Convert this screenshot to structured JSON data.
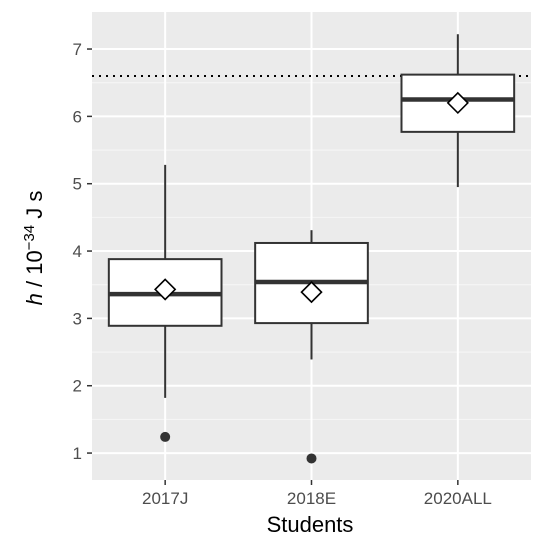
{
  "chart_data": {
    "type": "box",
    "xlabel": "Students",
    "ylabel": {
      "symbol": "h",
      "separator": " / 10",
      "exponent": "−34",
      "unit": " J s"
    },
    "ylim": [
      0.6,
      7.55
    ],
    "yticks": [
      1,
      2,
      3,
      4,
      5,
      6,
      7
    ],
    "grid": true,
    "reference_line": {
      "y": 6.6,
      "style": "dotted"
    },
    "categories": [
      "2017J",
      "2018E",
      "2020ALL"
    ],
    "boxes": [
      {
        "category": "2017J",
        "whisker_low": 1.82,
        "q1": 2.89,
        "median": 3.36,
        "q3": 3.88,
        "whisker_high": 5.28,
        "mean": 3.43,
        "outliers": [
          1.24
        ]
      },
      {
        "category": "2018E",
        "whisker_low": 2.39,
        "q1": 2.93,
        "median": 3.54,
        "q3": 4.12,
        "whisker_high": 4.31,
        "mean": 3.39,
        "outliers": [
          0.92
        ]
      },
      {
        "category": "2020ALL",
        "whisker_low": 4.95,
        "q1": 5.77,
        "median": 6.25,
        "q3": 6.62,
        "whisker_high": 7.22,
        "mean": 6.2,
        "outliers": []
      }
    ],
    "colors": {
      "panel": "#ebebeb",
      "grid_major": "#ffffff",
      "grid_minor": "#f5f5f5",
      "box_fill": "#ffffff",
      "box_line": "#333333",
      "outlier": "#333333",
      "reference_line": "#000000"
    }
  }
}
